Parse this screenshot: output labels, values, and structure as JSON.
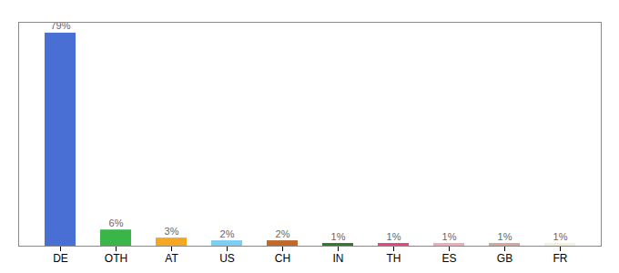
{
  "chart_data": {
    "type": "bar",
    "categories": [
      "DE",
      "OTH",
      "AT",
      "US",
      "CH",
      "IN",
      "TH",
      "ES",
      "GB",
      "FR"
    ],
    "values": [
      79,
      6,
      3,
      2,
      2,
      1,
      1,
      1,
      1,
      1
    ],
    "value_labels": [
      "79%",
      "6%",
      "3%",
      "2%",
      "2%",
      "1%",
      "1%",
      "1%",
      "1%",
      "1%"
    ],
    "colors": [
      "#4a6fd4",
      "#3ab54a",
      "#f5a623",
      "#7ecef4",
      "#c0692a",
      "#2d7a2d",
      "#e8457a",
      "#f4a8b8",
      "#d4a898",
      "#f5f0d8"
    ],
    "ylim": [
      0,
      83
    ],
    "data_labels": true,
    "tick_labels": "x",
    "grid": false
  }
}
